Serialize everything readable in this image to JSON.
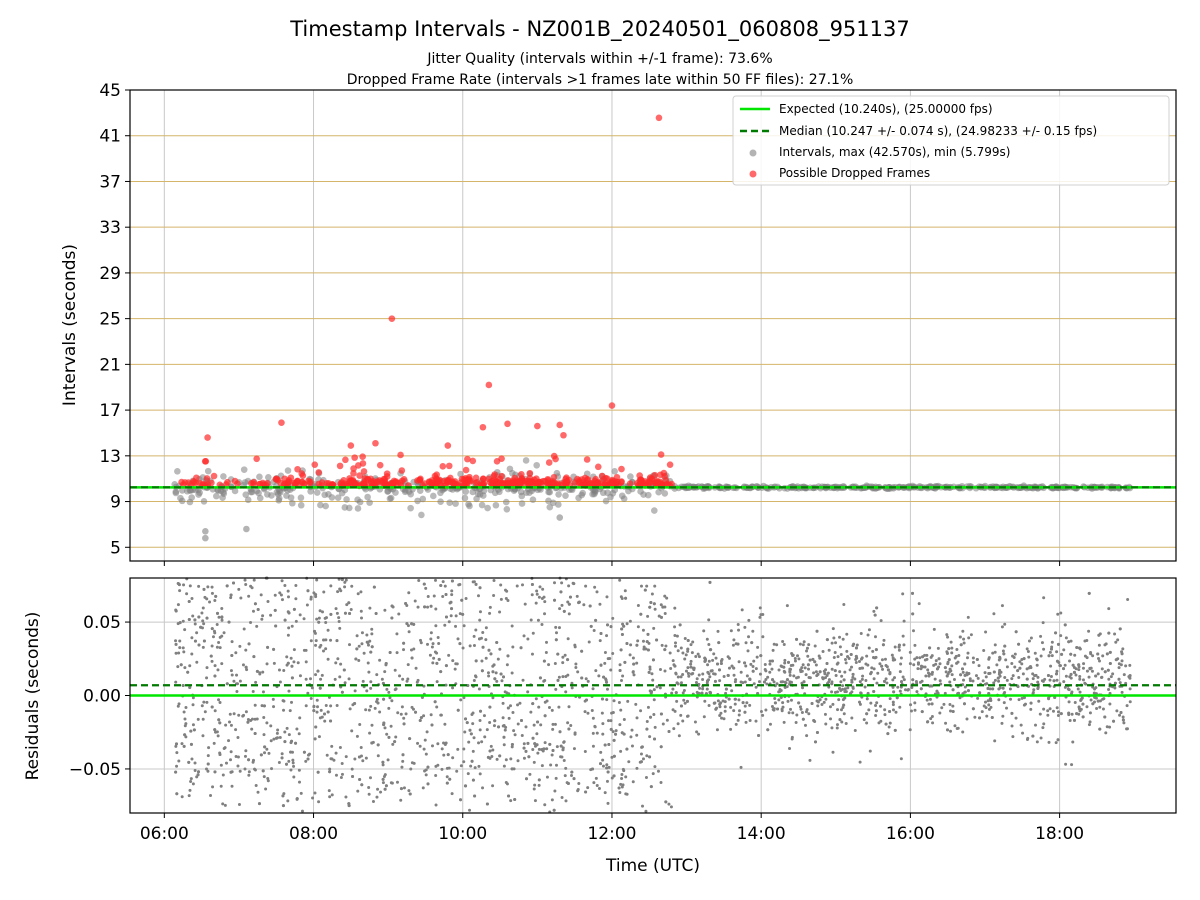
{
  "title": "Timestamp Intervals - NZ001B_20240501_060808_951137",
  "subtitle1": "Jitter Quality (intervals within +/-1 frame): 73.6%",
  "subtitle2": "Dropped Frame Rate (intervals >1 frames late within 50 FF files): 27.1%",
  "colors": {
    "expected": "#00e600",
    "median": "#007a00",
    "intervals": "#808080",
    "dropped": "#ff2a2a",
    "hgrid_top": "#d4b56a",
    "grid": "#c8c8c8"
  },
  "chart_data": [
    {
      "type": "scatter",
      "panel": "top",
      "ylabel": "Intervals (seconds)",
      "ylim": [
        3.8,
        45
      ],
      "yticks": [
        "5",
        "9",
        "13",
        "17",
        "21",
        "25",
        "29",
        "33",
        "37",
        "41",
        "45"
      ],
      "ytick_values": [
        5,
        9,
        13,
        17,
        21,
        25,
        29,
        33,
        37,
        41,
        45
      ],
      "xlim_hours": [
        5.54,
        19.56
      ],
      "legend_position": "top-right",
      "legend": [
        "Expected (10.240s), (25.00000 fps)",
        "Median (10.247 +/- 0.074 s), (24.98233 +/- 0.15 fps)",
        "Intervals, max (42.570s), min (5.799s)",
        "Possible Dropped Frames"
      ],
      "expected_interval": 10.24,
      "median_interval": 10.247,
      "notable_points": [
        {
          "x_hours": 12.63,
          "y": 42.57,
          "series": "dropped"
        },
        {
          "x_hours": 9.05,
          "y": 25.0,
          "series": "dropped"
        },
        {
          "x_hours": 10.35,
          "y": 19.2,
          "series": "dropped"
        },
        {
          "x_hours": 12.0,
          "y": 17.4,
          "series": "dropped"
        },
        {
          "x_hours": 7.57,
          "y": 15.9,
          "series": "dropped"
        },
        {
          "x_hours": 10.6,
          "y": 15.8,
          "series": "dropped"
        },
        {
          "x_hours": 11.0,
          "y": 15.6,
          "series": "dropped"
        },
        {
          "x_hours": 11.3,
          "y": 15.7,
          "series": "dropped"
        },
        {
          "x_hours": 10.27,
          "y": 15.5,
          "series": "dropped"
        },
        {
          "x_hours": 6.58,
          "y": 14.6,
          "series": "dropped"
        },
        {
          "x_hours": 8.83,
          "y": 14.1,
          "series": "dropped"
        },
        {
          "x_hours": 8.5,
          "y": 13.9,
          "series": "dropped"
        },
        {
          "x_hours": 9.8,
          "y": 13.9,
          "series": "dropped"
        },
        {
          "x_hours": 11.35,
          "y": 14.8,
          "series": "dropped"
        },
        {
          "x_hours": 6.55,
          "y": 5.8,
          "series": "interval"
        },
        {
          "x_hours": 6.55,
          "y": 6.4,
          "series": "interval"
        },
        {
          "x_hours": 7.1,
          "y": 6.6,
          "series": "interval"
        },
        {
          "x_hours": 11.3,
          "y": 7.6,
          "series": "interval"
        }
      ],
      "dropped_range_hours": [
        6.2,
        12.8
      ],
      "interval_range_hours": [
        6.1,
        18.95
      ]
    },
    {
      "type": "scatter",
      "panel": "bottom",
      "xlabel": "Time (UTC)",
      "ylabel": "Residuals (seconds)",
      "ylim": [
        -0.08,
        0.08
      ],
      "yticks": [
        "0.05",
        "0.00",
        "−0.05"
      ],
      "ytick_values": [
        0.05,
        0.0,
        -0.05
      ],
      "xticks": [
        "06:00",
        "08:00",
        "10:00",
        "12:00",
        "14:00",
        "16:00",
        "18:00"
      ],
      "xtick_hours": [
        6,
        8,
        10,
        12,
        14,
        16,
        18
      ],
      "xlim_hours": [
        5.54,
        19.56
      ],
      "expected_residual": 0.0,
      "median_residual": 0.007,
      "residual_spread_early": 0.08,
      "residual_spread_late": 0.03,
      "transition_hours": 12.8
    }
  ]
}
